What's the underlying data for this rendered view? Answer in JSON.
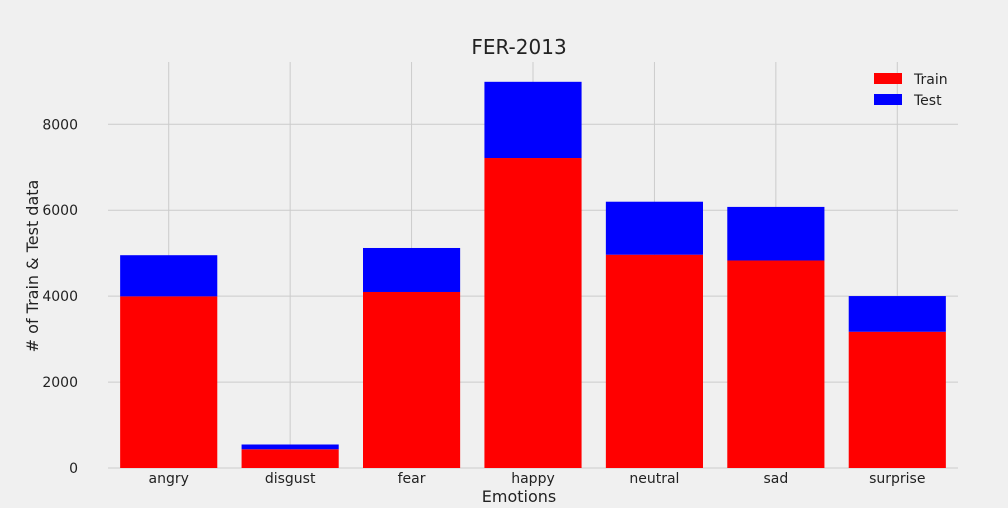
{
  "chart_data": {
    "type": "bar",
    "stacked": true,
    "title": "FER-2013",
    "xlabel": "Emotions",
    "ylabel": "# of Train & Test data",
    "categories": [
      "angry",
      "disgust",
      "fear",
      "happy",
      "neutral",
      "sad",
      "surprise"
    ],
    "series": [
      {
        "name": "Train",
        "color": "#ff0000",
        "values": [
          3995,
          436,
          4097,
          7215,
          4965,
          4830,
          3171
        ]
      },
      {
        "name": "Test",
        "color": "#0000ff",
        "values": [
          958,
          111,
          1024,
          1774,
          1233,
          1247,
          831
        ]
      }
    ],
    "ylim": [
      0,
      9450
    ],
    "yticks": [
      0,
      2000,
      4000,
      6000,
      8000
    ],
    "grid": true,
    "legend_position": "top-right"
  }
}
